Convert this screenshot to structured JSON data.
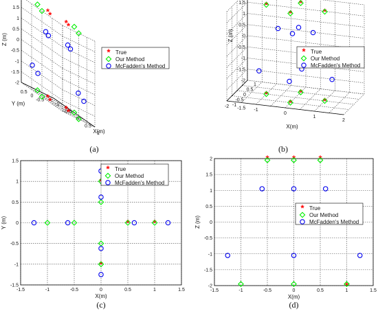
{
  "legend": {
    "true_label": "True",
    "ours_label": "Our Method",
    "mcfadden_label": "McFadden's Method"
  },
  "colors": {
    "true": "#ff0000",
    "ours": "#00ee00",
    "mcfadden": "#0000ee"
  },
  "chart_data": [
    {
      "id": "a",
      "caption": "(a)",
      "type": "scatter3d",
      "xlabel": "X(m)",
      "ylabel": "Y (m)",
      "zlabel": "Z (m)",
      "xlim": [
        -1,
        1
      ],
      "ylim": [
        -1,
        1
      ],
      "zlim": [
        -2,
        2
      ],
      "xticks": [
        -1,
        -0.5,
        0,
        0.5,
        1
      ],
      "yticks": [
        -1,
        -0.5,
        0,
        0.5,
        1
      ],
      "yticklabels_shown": [
        -0.5,
        0,
        0.5
      ],
      "zticks": [
        -2,
        -1.5,
        -1,
        -0.5,
        0,
        0.5,
        1,
        1.5,
        2
      ],
      "grid": true,
      "legend_position": "right",
      "series": [
        {
          "name": "True",
          "marker": "star",
          "points": [
            [
              -0.5,
              0,
              -2
            ],
            [
              0.5,
              0,
              -2
            ],
            [
              0,
              -0.5,
              -2
            ],
            [
              0,
              0.5,
              -2
            ],
            [
              -0.5,
              0,
              2
            ],
            [
              0.5,
              0,
              2
            ],
            [
              0,
              -0.5,
              2
            ],
            [
              0,
              0.5,
              2
            ]
          ]
        },
        {
          "name": "Our Method",
          "marker": "diamond",
          "points": [
            [
              -1,
              0,
              -2
            ],
            [
              1,
              0,
              -2
            ],
            [
              0,
              -1,
              -2
            ],
            [
              0,
              1,
              -2
            ],
            [
              -1,
              0,
              2
            ],
            [
              1,
              0,
              2
            ],
            [
              0,
              -1,
              2
            ],
            [
              0,
              1,
              2
            ]
          ]
        },
        {
          "name": "McFadden's Method",
          "marker": "circle",
          "points": [
            [
              -1.25,
              0,
              -1
            ],
            [
              1.25,
              0,
              -1
            ],
            [
              0,
              -1.25,
              -1
            ],
            [
              0,
              1.25,
              -1
            ],
            [
              -0.6,
              0,
              1
            ],
            [
              0.6,
              0,
              1
            ],
            [
              0,
              -0.6,
              1
            ],
            [
              0,
              0.6,
              1
            ]
          ]
        }
      ]
    },
    {
      "id": "b",
      "caption": "(b)",
      "type": "scatter3d",
      "xlabel": "X(m)",
      "ylabel": "Y (m)",
      "zlabel": "Z (m)",
      "xlim": [
        -2,
        2
      ],
      "ylim": [
        -1,
        1
      ],
      "zlim": [
        -2,
        2
      ],
      "xticks": [
        -2,
        -1.5,
        -1,
        -0.5,
        0,
        0.5,
        1,
        1.5,
        2
      ],
      "xticklabels_shown": [
        -2,
        -1.5,
        -1,
        0,
        1,
        2
      ],
      "yticks": [
        -1,
        -0.5,
        0,
        0.5,
        1
      ],
      "zticks": [
        -2,
        -1.5,
        -1,
        -0.5,
        0,
        0.5,
        1,
        1.5,
        2
      ],
      "grid": true,
      "legend_position": "right",
      "series": [
        {
          "name": "True",
          "marker": "star",
          "points": [
            [
              -1,
              0,
              -2
            ],
            [
              1,
              0,
              -2
            ],
            [
              0,
              -0.5,
              -2
            ],
            [
              0,
              0.5,
              -2
            ],
            [
              -1,
              0,
              2
            ],
            [
              1,
              0,
              2
            ],
            [
              0,
              -0.5,
              2
            ],
            [
              0,
              0.5,
              2
            ]
          ]
        },
        {
          "name": "Our Method",
          "marker": "diamond",
          "points": [
            [
              -1,
              0,
              -2
            ],
            [
              1,
              0,
              -2
            ],
            [
              0,
              -0.5,
              -2
            ],
            [
              0,
              0.5,
              -2
            ],
            [
              -1,
              0,
              2
            ],
            [
              1,
              0,
              2
            ],
            [
              0,
              -0.5,
              2
            ],
            [
              0,
              0.5,
              2
            ]
          ]
        },
        {
          "name": "McFadden's Method",
          "marker": "circle",
          "points": [
            [
              -1.25,
              0,
              -1
            ],
            [
              1.25,
              0,
              -1
            ],
            [
              0,
              -0.6,
              -1
            ],
            [
              0,
              0.6,
              -1
            ],
            [
              -0.6,
              0,
              1
            ],
            [
              0.6,
              0,
              1
            ],
            [
              0,
              -0.3,
              1
            ],
            [
              0,
              0.3,
              1
            ]
          ]
        }
      ]
    },
    {
      "id": "c",
      "caption": "(c)",
      "type": "scatter",
      "xlabel": "X(m)",
      "ylabel": "Y (m)",
      "xlim": [
        -1.5,
        1.5
      ],
      "ylim": [
        -1.5,
        1.5
      ],
      "xticks": [
        -1.5,
        -1,
        -0.5,
        0,
        0.5,
        1,
        1.5
      ],
      "yticks": [
        -1.5,
        -1,
        -0.5,
        0,
        0.5,
        1,
        1.5
      ],
      "grid": true,
      "legend_position": "top-right",
      "series": [
        {
          "name": "True",
          "marker": "star",
          "x": [
            0.5,
            1,
            0,
            0
          ],
          "y": [
            0,
            0,
            1,
            -1
          ]
        },
        {
          "name": "Our Method",
          "marker": "diamond",
          "x": [
            -1,
            -0.5,
            0.5,
            1,
            0,
            0,
            0,
            0
          ],
          "y": [
            0,
            0,
            0,
            0,
            1,
            0.5,
            -0.5,
            -1
          ]
        },
        {
          "name": "McFadden's Method",
          "marker": "circle",
          "x": [
            -1.25,
            -0.62,
            0.62,
            1.25,
            0,
            0,
            0,
            0
          ],
          "y": [
            0,
            0,
            0,
            0,
            1.25,
            0.62,
            -0.62,
            -1.25
          ]
        }
      ]
    },
    {
      "id": "d",
      "caption": "(d)",
      "type": "scatter",
      "xlabel": "X(m)",
      "ylabel": "Z (m)",
      "xlim": [
        -1.5,
        1.5
      ],
      "ylim": [
        -2,
        2
      ],
      "xticks": [
        -1.5,
        -1,
        -0.5,
        0,
        0.5,
        1,
        1.5
      ],
      "yticks": [
        -2,
        -1.5,
        -1,
        -0.5,
        0,
        0.5,
        1,
        1.5,
        2
      ],
      "grid": true,
      "legend_position": "right",
      "series": [
        {
          "name": "True",
          "marker": "star",
          "x": [
            -0.5,
            0,
            0.5,
            1
          ],
          "y": [
            2,
            2,
            2,
            -2
          ]
        },
        {
          "name": "Our Method",
          "marker": "diamond",
          "x": [
            -0.5,
            0,
            0.5,
            -1,
            0,
            1
          ],
          "y": [
            1.95,
            1.95,
            1.95,
            -1.95,
            -1.95,
            -1.95
          ]
        },
        {
          "name": "McFadden's Method",
          "marker": "circle",
          "x": [
            -0.6,
            0,
            0.6,
            -1.25,
            0,
            1.25
          ],
          "y": [
            1.05,
            1.05,
            1.05,
            -1.05,
            -1.05,
            -1.05
          ]
        }
      ]
    }
  ]
}
